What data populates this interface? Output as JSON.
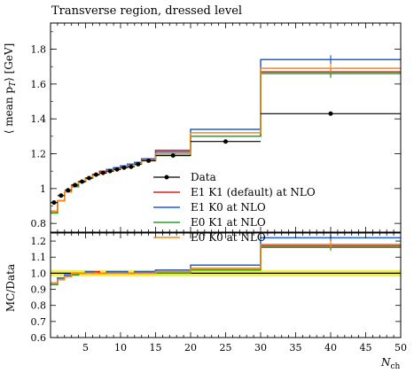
{
  "chart_data": {
    "type": "line",
    "title": "Transverse region, dressed level",
    "xlabel": "N_ch",
    "xlim": [
      0,
      50
    ],
    "xticks": [
      5,
      10,
      15,
      20,
      25,
      30,
      35,
      40,
      45,
      50
    ],
    "bin_edges": [
      0,
      1,
      2,
      3,
      4,
      5,
      6,
      7,
      8,
      9,
      10,
      11,
      12,
      13,
      15,
      20,
      30,
      50
    ],
    "main": {
      "ylabel": "⟨ mean p_T ⟩ [GeV]",
      "ylim": [
        0.75,
        1.95
      ],
      "yticks": [
        0.8,
        1,
        1.2,
        1.4,
        1.6,
        1.8
      ],
      "ytick_labels": [
        "0.8",
        "1",
        "1.2",
        "1.4",
        "1.6",
        "1.8"
      ]
    },
    "ratio": {
      "ylabel": "MC/Data",
      "ylim": [
        0.6,
        1.25
      ],
      "yticks": [
        0.6,
        0.7,
        0.8,
        0.9,
        1.0,
        1.1,
        1.2
      ],
      "ytick_labels": [
        "0.6",
        "0.7",
        "0.8",
        "0.9",
        "1.0",
        "1.1",
        "1.2"
      ],
      "band": [
        0.98,
        1.02
      ]
    },
    "data": {
      "name": "Data",
      "color": "#000000",
      "x": [
        0.5,
        1.5,
        2.5,
        3.5,
        4.5,
        5.5,
        6.5,
        7.5,
        8.5,
        9.5,
        10.5,
        11.5,
        12.5,
        14,
        17.5,
        25,
        40
      ],
      "y": [
        0.92,
        0.96,
        0.99,
        1.02,
        1.04,
        1.06,
        1.08,
        1.09,
        1.1,
        1.11,
        1.12,
        1.125,
        1.14,
        1.16,
        1.19,
        1.27,
        1.43
      ]
    },
    "series": [
      {
        "name": "E1 K1 (default) at NLO",
        "color": "#e41a1c",
        "values": [
          0.86,
          0.93,
          0.98,
          1.02,
          1.04,
          1.06,
          1.08,
          1.1,
          1.11,
          1.12,
          1.13,
          1.14,
          1.15,
          1.17,
          1.22,
          1.3,
          1.67
        ],
        "ratio": [
          0.93,
          0.96,
          0.98,
          1.0,
          1.0,
          1.01,
          1.01,
          1.0,
          1.01,
          1.01,
          1.01,
          1.0,
          1.01,
          1.01,
          1.02,
          1.03,
          1.17
        ]
      },
      {
        "name": "E1 K0 at NLO",
        "color": "#1f5fd6",
        "values": [
          0.87,
          0.93,
          0.98,
          1.02,
          1.04,
          1.06,
          1.08,
          1.09,
          1.11,
          1.12,
          1.13,
          1.14,
          1.15,
          1.17,
          1.21,
          1.34,
          1.74
        ],
        "ratio": [
          0.94,
          0.97,
          0.99,
          1.0,
          1.0,
          1.01,
          1.0,
          1.0,
          1.01,
          1.01,
          1.01,
          1.0,
          1.01,
          1.01,
          1.02,
          1.05,
          1.22
        ]
      },
      {
        "name": "E0 K1 at NLO",
        "color": "#2e9a2e",
        "values": [
          0.86,
          0.93,
          0.98,
          1.01,
          1.04,
          1.06,
          1.08,
          1.09,
          1.1,
          1.11,
          1.12,
          1.13,
          1.14,
          1.16,
          1.19,
          1.3,
          1.66
        ],
        "ratio": [
          0.93,
          0.96,
          0.98,
          0.99,
          1.0,
          1.0,
          1.0,
          1.0,
          1.0,
          1.0,
          1.0,
          1.0,
          1.0,
          1.0,
          1.0,
          1.02,
          1.16
        ]
      },
      {
        "name": "E0 K0 at NLO",
        "color": "#f28c1a",
        "values": [
          0.87,
          0.93,
          0.98,
          1.02,
          1.04,
          1.06,
          1.08,
          1.09,
          1.1,
          1.11,
          1.12,
          1.13,
          1.14,
          1.16,
          1.2,
          1.32,
          1.69
        ],
        "ratio": [
          0.94,
          0.96,
          0.98,
          1.0,
          1.0,
          1.0,
          1.0,
          1.0,
          1.0,
          1.0,
          1.0,
          1.0,
          1.0,
          1.0,
          1.01,
          1.03,
          1.18
        ]
      }
    ],
    "legend_placement": "center-right"
  }
}
